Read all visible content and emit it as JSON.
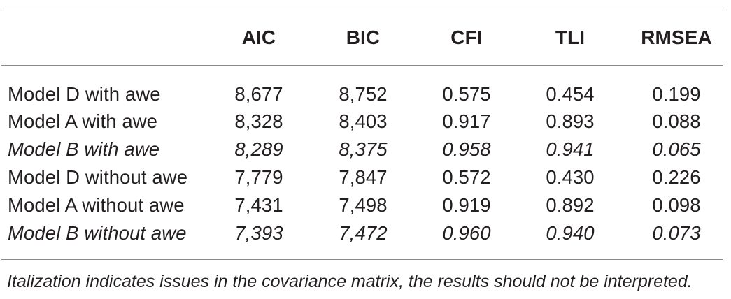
{
  "table": {
    "columns": [
      "",
      "AIC",
      "BIC",
      "CFI",
      "TLI",
      "RMSEA"
    ],
    "rows": [
      {
        "model": "Model D with awe",
        "values": [
          "8,677",
          "8,752",
          "0.575",
          "0.454",
          "0.199"
        ],
        "italic": false
      },
      {
        "model": "Model A with awe",
        "values": [
          "8,328",
          "8,403",
          "0.917",
          "0.893",
          "0.088"
        ],
        "italic": false
      },
      {
        "model": "Model B with awe",
        "values": [
          "8,289",
          "8,375",
          "0.958",
          "0.941",
          "0.065"
        ],
        "italic": true
      },
      {
        "model": "Model D without awe",
        "values": [
          "7,779",
          "7,847",
          "0.572",
          "0.430",
          "0.226"
        ],
        "italic": false
      },
      {
        "model": "Model A without awe",
        "values": [
          "7,431",
          "7,498",
          "0.919",
          "0.892",
          "0.098"
        ],
        "italic": false
      },
      {
        "model": "Model B without awe",
        "values": [
          "7,393",
          "7,472",
          "0.960",
          "0.940",
          "0.073"
        ],
        "italic": true
      }
    ]
  },
  "footnote": "Italization indicates issues in the covariance matrix, the results should not be interpreted."
}
